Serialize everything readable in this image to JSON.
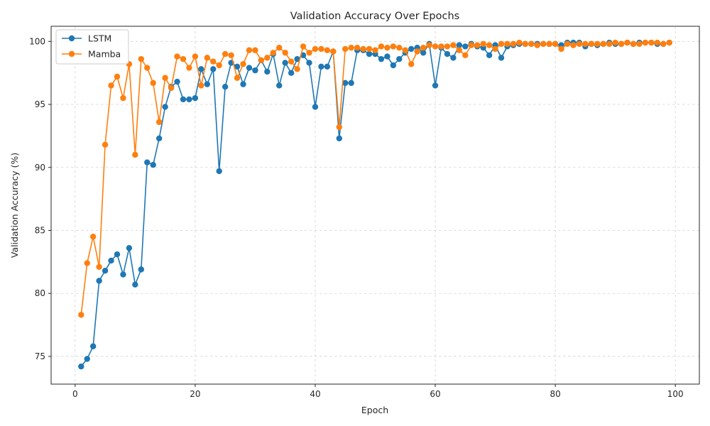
{
  "chart_data": {
    "type": "line",
    "title": "Validation Accuracy Over Epochs",
    "xlabel": "Epoch",
    "ylabel": "Validation Accuracy (%)",
    "xlim": [
      -4,
      104
    ],
    "ylim": [
      72.8,
      101.2
    ],
    "xticks": [
      0,
      20,
      40,
      60,
      80,
      100
    ],
    "yticks": [
      75,
      80,
      85,
      90,
      95,
      100
    ],
    "grid": true,
    "legend_position": "top-left",
    "series": [
      {
        "name": "LSTM",
        "color": "#1f77b4",
        "marker": "circle",
        "x": [
          1,
          2,
          3,
          4,
          5,
          6,
          7,
          8,
          9,
          10,
          11,
          12,
          13,
          14,
          15,
          16,
          17,
          18,
          19,
          20,
          21,
          22,
          23,
          24,
          25,
          26,
          27,
          28,
          29,
          30,
          31,
          32,
          33,
          34,
          35,
          36,
          37,
          38,
          39,
          40,
          41,
          42,
          43,
          44,
          45,
          46,
          47,
          48,
          49,
          50,
          51,
          52,
          53,
          54,
          55,
          56,
          57,
          58,
          59,
          60,
          61,
          62,
          63,
          64,
          65,
          66,
          67,
          68,
          69,
          70,
          71,
          72,
          73,
          74,
          75,
          76,
          77,
          78,
          79,
          80,
          81,
          82,
          83,
          84,
          85,
          86,
          87,
          88,
          89,
          90,
          91,
          92,
          93,
          94,
          95,
          96,
          97,
          98,
          99
        ],
        "values": [
          74.2,
          74.8,
          75.8,
          81.0,
          81.8,
          82.6,
          83.1,
          81.5,
          83.6,
          80.7,
          81.9,
          90.4,
          90.2,
          92.3,
          94.8,
          96.4,
          96.8,
          95.4,
          95.4,
          95.5,
          97.8,
          96.6,
          97.8,
          89.7,
          96.4,
          98.3,
          98.0,
          96.6,
          97.9,
          97.7,
          98.5,
          97.6,
          99.0,
          96.5,
          98.3,
          97.5,
          98.6,
          98.9,
          98.3,
          94.8,
          98.0,
          98.0,
          99.2,
          92.3,
          96.7,
          96.7,
          99.3,
          99.3,
          99.0,
          99.0,
          98.6,
          98.8,
          98.1,
          98.6,
          99.1,
          99.4,
          99.5,
          99.1,
          99.8,
          96.5,
          99.5,
          99.0,
          98.7,
          99.7,
          99.6,
          99.8,
          99.6,
          99.5,
          98.9,
          99.7,
          98.7,
          99.6,
          99.7,
          99.8,
          99.8,
          99.8,
          99.8,
          99.8,
          99.8,
          99.8,
          99.7,
          99.9,
          99.9,
          99.9,
          99.6,
          99.8,
          99.7,
          99.8,
          99.9,
          99.8,
          99.8,
          99.9,
          99.8,
          99.9,
          99.9,
          99.9,
          99.8,
          99.8,
          99.9
        ]
      },
      {
        "name": "Mamba",
        "color": "#ff7f0e",
        "marker": "circle",
        "x": [
          1,
          2,
          3,
          4,
          5,
          6,
          7,
          8,
          9,
          10,
          11,
          12,
          13,
          14,
          15,
          16,
          17,
          18,
          19,
          20,
          21,
          22,
          23,
          24,
          25,
          26,
          27,
          28,
          29,
          30,
          31,
          32,
          33,
          34,
          35,
          36,
          37,
          38,
          39,
          40,
          41,
          42,
          43,
          44,
          45,
          46,
          47,
          48,
          49,
          50,
          51,
          52,
          53,
          54,
          55,
          56,
          57,
          58,
          59,
          60,
          61,
          62,
          63,
          64,
          65,
          66,
          67,
          68,
          69,
          70,
          71,
          72,
          73,
          74,
          75,
          76,
          77,
          78,
          79,
          80,
          81,
          82,
          83,
          84,
          85,
          86,
          87,
          88,
          89,
          90,
          91,
          92,
          93,
          94,
          95,
          96,
          97,
          98,
          99
        ],
        "values": [
          78.3,
          82.4,
          84.5,
          82.1,
          91.8,
          96.5,
          97.2,
          95.5,
          98.2,
          91.0,
          98.6,
          97.9,
          96.7,
          93.6,
          97.1,
          96.3,
          98.8,
          98.6,
          97.9,
          98.8,
          96.5,
          98.7,
          98.4,
          98.1,
          99.0,
          98.9,
          97.1,
          98.2,
          99.3,
          99.3,
          98.5,
          98.7,
          99.1,
          99.5,
          99.1,
          98.4,
          97.8,
          99.6,
          99.1,
          99.4,
          99.4,
          99.3,
          99.2,
          93.2,
          99.4,
          99.5,
          99.5,
          99.4,
          99.4,
          99.3,
          99.6,
          99.5,
          99.6,
          99.5,
          99.3,
          98.2,
          99.2,
          99.5,
          99.7,
          99.6,
          99.6,
          99.6,
          99.7,
          99.3,
          98.9,
          99.7,
          99.7,
          99.8,
          99.7,
          99.4,
          99.8,
          99.8,
          99.8,
          99.9,
          99.8,
          99.8,
          99.7,
          99.8,
          99.8,
          99.8,
          99.4,
          99.8,
          99.7,
          99.8,
          99.8,
          99.8,
          99.8,
          99.8,
          99.8,
          99.9,
          99.8,
          99.9,
          99.8,
          99.8,
          99.9,
          99.9,
          99.9,
          99.8,
          99.9
        ]
      }
    ]
  }
}
